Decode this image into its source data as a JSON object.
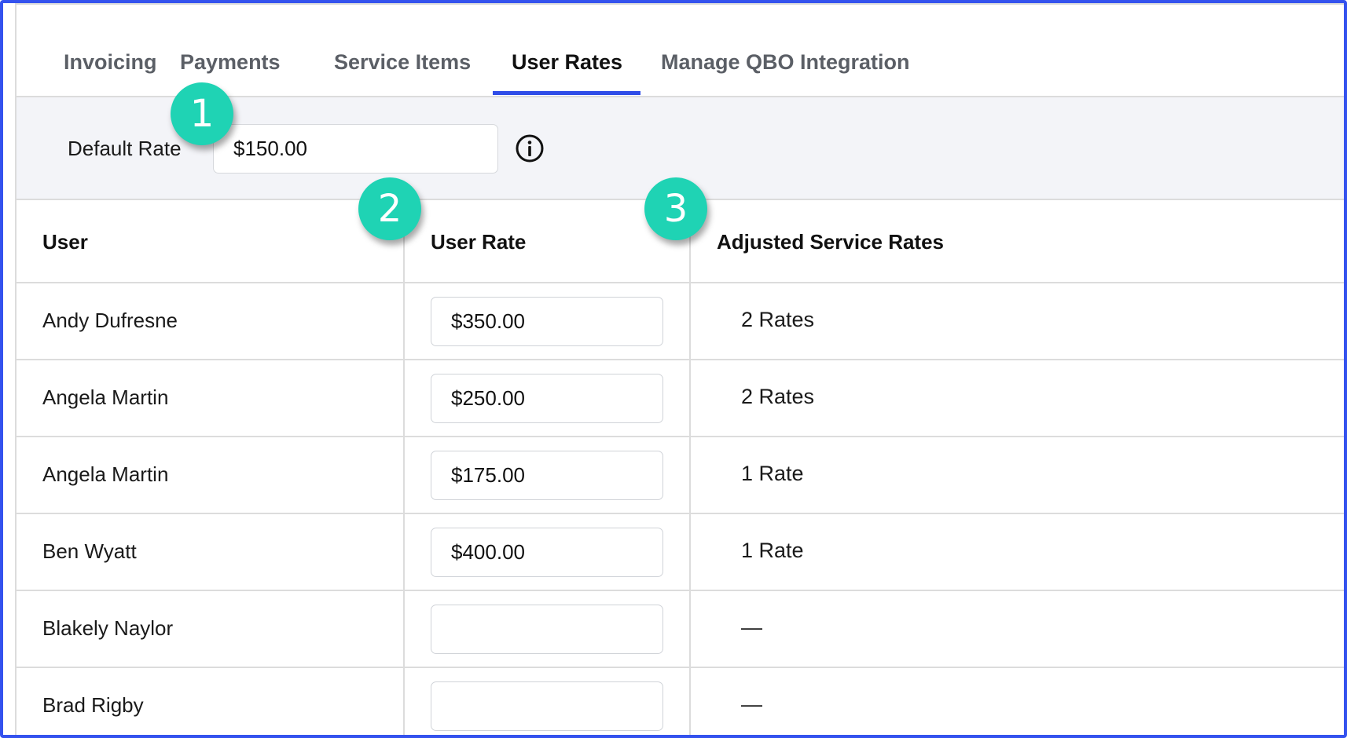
{
  "tabs": [
    {
      "label": "Invoicing",
      "active": false
    },
    {
      "label": "Payments",
      "active": false
    },
    {
      "label": "Service Items",
      "active": false
    },
    {
      "label": "User Rates",
      "active": true
    },
    {
      "label": "Manage QBO Integration",
      "active": false
    }
  ],
  "default_rate": {
    "label": "Default Rate",
    "value": "$150.00",
    "info_icon": "info-circle-icon"
  },
  "table": {
    "headers": {
      "user": "User",
      "user_rate": "User Rate",
      "adjusted": "Adjusted Service Rates"
    },
    "rows": [
      {
        "user": "Andy Dufresne",
        "rate": "$350.00",
        "adjusted": "2 Rates"
      },
      {
        "user": "Angela Martin",
        "rate": "$250.00",
        "adjusted": "2 Rates"
      },
      {
        "user": "Angela Martin",
        "rate": "$175.00",
        "adjusted": "1 Rate"
      },
      {
        "user": "Ben Wyatt",
        "rate": "$400.00",
        "adjusted": "1 Rate"
      },
      {
        "user": "Blakely Naylor",
        "rate": "",
        "adjusted": "—"
      },
      {
        "user": "Brad Rigby",
        "rate": "",
        "adjusted": "—"
      }
    ]
  },
  "callouts": [
    "1",
    "2",
    "3"
  ],
  "colors": {
    "accent": "#2f4de8",
    "frame": "#3452ee",
    "badge": "#1fd3b4",
    "bar_background": "#f3f4f8"
  }
}
